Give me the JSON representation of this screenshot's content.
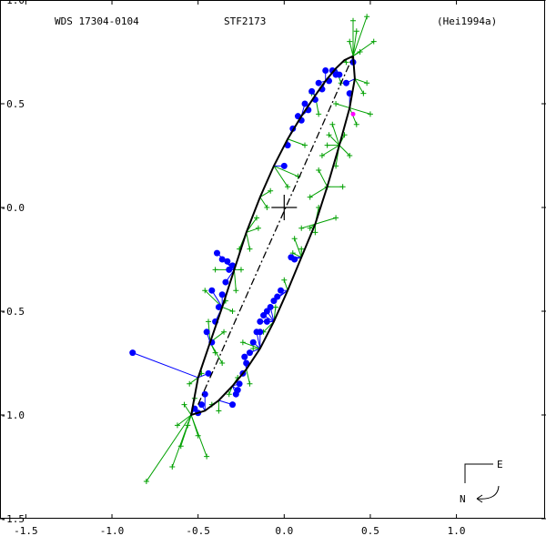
{
  "header": {
    "left": "WDS 17304-0104",
    "center": "STF2173",
    "right": "(Hei1994a)"
  },
  "compass": {
    "east_label": "E",
    "north_label": "N"
  },
  "colors": {
    "frame": "#000000",
    "orbit": "#000000",
    "nodes_line": "#000000",
    "observations_plus": "#00a000",
    "observations_line": "#00a000",
    "speckle_points": "#0000ff",
    "outlier_line": "#0000ff",
    "magenta_points": "#ff00ff"
  },
  "chart_data": {
    "type": "scatter",
    "title": "",
    "xlabel": "",
    "ylabel": "",
    "xlim": [
      -1.65,
      1.52
    ],
    "ylim": [
      1.0,
      -1.5
    ],
    "x_ticks": [
      -1.5,
      -1.0,
      -0.5,
      0.0,
      0.5,
      1.0
    ],
    "x_tick_labels": [
      "-1.5",
      "-1.0",
      "-0.5",
      "0.0",
      "0.5",
      "1.0"
    ],
    "y_ticks": [
      1.0,
      0.5,
      0.0,
      -0.5,
      -1.0,
      -1.5
    ],
    "y_tick_labels": [
      "1.0",
      "0.5",
      "-0.0",
      "-0.5",
      "-1.0",
      "-1.5"
    ],
    "grid": false,
    "legend": "none",
    "primary_star": {
      "x": 0.0,
      "y": 0.0
    },
    "line_of_nodes": {
      "x": [
        -0.5,
        0.4
      ],
      "y": [
        -0.95,
        0.73
      ]
    },
    "orbit": {
      "x": [
        0.4,
        0.41,
        0.38,
        0.32,
        0.25,
        0.18,
        0.1,
        0.02,
        -0.06,
        -0.14,
        -0.22,
        -0.3,
        -0.38,
        -0.46,
        -0.54,
        -0.5,
        -0.43,
        -0.36,
        -0.29,
        -0.22,
        -0.14,
        -0.06,
        0.02,
        0.1,
        0.18,
        0.24,
        0.3,
        0.35,
        0.4
      ],
      "y": [
        0.73,
        0.62,
        0.48,
        0.3,
        0.1,
        -0.08,
        -0.24,
        -0.4,
        -0.55,
        -0.68,
        -0.78,
        -0.86,
        -0.93,
        -0.98,
        -1.0,
        -0.82,
        -0.65,
        -0.48,
        -0.3,
        -0.12,
        0.05,
        0.2,
        0.33,
        0.44,
        0.54,
        0.61,
        0.67,
        0.71,
        0.73
      ]
    },
    "series": [
      {
        "marker": "plus",
        "x": [
          -0.8,
          -0.65,
          -0.6,
          -0.56,
          -0.5,
          -0.52,
          -0.45,
          -0.42,
          -0.38,
          -0.55,
          -0.48,
          -0.4,
          -0.35,
          -0.3,
          -0.28,
          -0.25,
          -0.2,
          -0.15,
          -0.1,
          -0.32,
          -0.27,
          -0.22,
          -0.18,
          -0.12,
          -0.05,
          0.0,
          0.05,
          0.1,
          0.15,
          0.2,
          0.25,
          0.28,
          0.3,
          0.33,
          0.36,
          0.38,
          0.4,
          0.42,
          0.44,
          0.48,
          0.5,
          0.35,
          0.3,
          0.25,
          0.2,
          0.15,
          0.1,
          0.18,
          0.22,
          0.12,
          0.08,
          0.48,
          0.52,
          0.46,
          0.42,
          0.38,
          0.34,
          0.3,
          0.26,
          0.2,
          0.16,
          -0.58,
          -0.62,
          -0.46,
          -0.44,
          -0.36,
          -0.2,
          -0.24,
          -0.4,
          -0.34,
          -0.26,
          -0.16,
          -0.08,
          0.02,
          0.06
        ],
        "y": [
          -1.32,
          -1.25,
          -1.15,
          -1.05,
          -1.1,
          -0.92,
          -1.2,
          -0.95,
          -0.98,
          -0.85,
          -0.8,
          -0.7,
          -0.6,
          -0.5,
          -0.4,
          -0.3,
          -0.2,
          -0.1,
          0.0,
          -0.9,
          -0.82,
          -0.75,
          -0.68,
          -0.6,
          -0.48,
          -0.35,
          -0.22,
          -0.1,
          0.05,
          0.18,
          0.3,
          0.4,
          0.5,
          0.6,
          0.7,
          0.8,
          0.9,
          0.85,
          0.75,
          0.6,
          0.45,
          0.35,
          0.2,
          0.1,
          0.0,
          -0.1,
          -0.2,
          -0.12,
          0.25,
          0.3,
          0.15,
          0.92,
          0.8,
          0.55,
          0.4,
          0.25,
          0.1,
          -0.05,
          0.35,
          0.45,
          0.55,
          -0.95,
          -1.05,
          -0.4,
          -0.55,
          -0.75,
          -0.85,
          -0.65,
          -0.3,
          -0.45,
          -0.2,
          -0.05,
          0.08,
          0.1,
          -0.15
        ]
      },
      {
        "marker": "dot",
        "x": [
          -0.88,
          -0.52,
          -0.5,
          -0.48,
          -0.46,
          -0.44,
          -0.42,
          -0.4,
          -0.38,
          -0.36,
          -0.34,
          -0.32,
          -0.3,
          -0.28,
          -0.26,
          -0.24,
          -0.22,
          -0.2,
          -0.18,
          -0.16,
          -0.14,
          -0.12,
          -0.1,
          -0.08,
          -0.06,
          -0.04,
          -0.02,
          0.0,
          0.02,
          0.05,
          0.08,
          0.12,
          0.16,
          0.2,
          0.24,
          0.28,
          0.32,
          0.36,
          0.38,
          0.4,
          -0.3,
          -0.33,
          -0.36,
          -0.39,
          -0.42,
          -0.45,
          -0.27,
          -0.23,
          0.1,
          0.14,
          0.18,
          0.22,
          0.26,
          0.3,
          0.04,
          0.06,
          -0.1,
          -0.14
        ],
        "y": [
          -0.7,
          -0.97,
          -0.99,
          -0.95,
          -0.9,
          -0.8,
          -0.65,
          -0.55,
          -0.48,
          -0.42,
          -0.36,
          -0.3,
          -0.95,
          -0.9,
          -0.85,
          -0.8,
          -0.75,
          -0.7,
          -0.65,
          -0.6,
          -0.55,
          -0.52,
          -0.5,
          -0.48,
          -0.45,
          -0.43,
          -0.4,
          0.2,
          0.3,
          0.38,
          0.44,
          0.5,
          0.56,
          0.6,
          0.66,
          0.66,
          0.64,
          0.6,
          0.55,
          0.7,
          -0.28,
          -0.26,
          -0.25,
          -0.22,
          -0.4,
          -0.6,
          -0.88,
          -0.72,
          0.42,
          0.47,
          0.52,
          0.57,
          0.61,
          0.64,
          -0.24,
          -0.25,
          -0.55,
          -0.6
        ]
      },
      {
        "marker": "magenta-dot",
        "x": [
          0.4
        ],
        "y": [
          0.45
        ]
      }
    ]
  }
}
